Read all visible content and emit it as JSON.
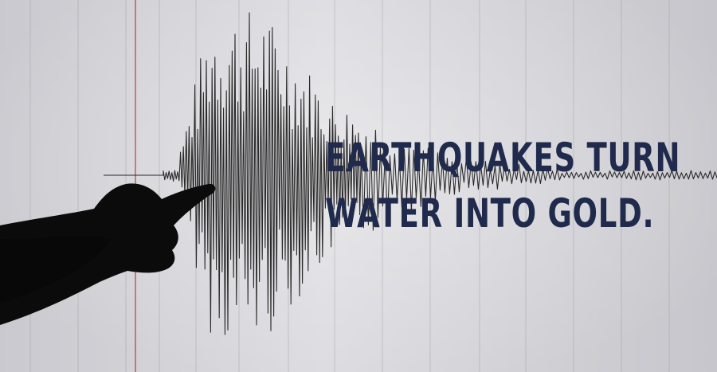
{
  "headline": {
    "line1": "EARTHQUAKES TURN",
    "line2": "WATER INTO GOLD.",
    "color": "#1f2a4c"
  },
  "photo": {
    "background_color": "#d6d6da",
    "trace_color": "#2a2a2a",
    "marker_line_color": "#b84b4b",
    "silhouette_color": "#0b0b0b"
  }
}
